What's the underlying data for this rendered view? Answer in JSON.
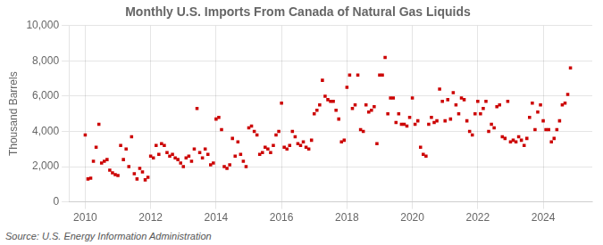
{
  "chart_data": {
    "type": "scatter",
    "title": "Monthly U.S. Imports From Canada of Natural Gas Liquids",
    "ylabel": "Thousand Barrels",
    "annotations": [
      "Source: U.S. Energy Information Administration"
    ],
    "x": [
      2010.0,
      2010.083,
      2010.167,
      2010.25,
      2010.333,
      2010.417,
      2010.5,
      2010.583,
      2010.667,
      2010.75,
      2010.833,
      2010.917,
      2011.0,
      2011.083,
      2011.167,
      2011.25,
      2011.333,
      2011.417,
      2011.5,
      2011.583,
      2011.667,
      2011.75,
      2011.833,
      2011.917,
      2012.0,
      2012.083,
      2012.167,
      2012.25,
      2012.333,
      2012.417,
      2012.5,
      2012.583,
      2012.667,
      2012.75,
      2012.833,
      2012.917,
      2013.0,
      2013.083,
      2013.167,
      2013.25,
      2013.333,
      2013.417,
      2013.5,
      2013.583,
      2013.667,
      2013.75,
      2013.833,
      2013.917,
      2014.0,
      2014.083,
      2014.167,
      2014.25,
      2014.333,
      2014.417,
      2014.5,
      2014.583,
      2014.667,
      2014.75,
      2014.833,
      2014.917,
      2015.0,
      2015.083,
      2015.167,
      2015.25,
      2015.333,
      2015.417,
      2015.5,
      2015.583,
      2015.667,
      2015.75,
      2015.833,
      2015.917,
      2016.0,
      2016.083,
      2016.167,
      2016.25,
      2016.333,
      2016.417,
      2016.5,
      2016.583,
      2016.667,
      2016.75,
      2016.833,
      2016.917,
      2017.0,
      2017.083,
      2017.167,
      2017.25,
      2017.333,
      2017.417,
      2017.5,
      2017.583,
      2017.667,
      2017.75,
      2017.833,
      2017.917,
      2018.0,
      2018.083,
      2018.167,
      2018.25,
      2018.333,
      2018.417,
      2018.5,
      2018.583,
      2018.667,
      2018.75,
      2018.833,
      2018.917,
      2019.0,
      2019.083,
      2019.167,
      2019.25,
      2019.333,
      2019.417,
      2019.5,
      2019.583,
      2019.667,
      2019.75,
      2019.833,
      2019.917,
      2020.0,
      2020.083,
      2020.167,
      2020.25,
      2020.333,
      2020.417,
      2020.5,
      2020.583,
      2020.667,
      2020.75,
      2020.833,
      2020.917,
      2021.0,
      2021.083,
      2021.167,
      2021.25,
      2021.333,
      2021.417,
      2021.5,
      2021.583,
      2021.667,
      2021.75,
      2021.833,
      2021.917,
      2022.0,
      2022.083,
      2022.167,
      2022.25,
      2022.333,
      2022.417,
      2022.5,
      2022.583,
      2022.667,
      2022.75,
      2022.833,
      2022.917,
      2023.0,
      2023.083,
      2023.167,
      2023.25,
      2023.333,
      2023.417,
      2023.5,
      2023.583,
      2023.667,
      2023.75,
      2023.833,
      2023.917,
      2024.0,
      2024.083,
      2024.167,
      2024.25,
      2024.333,
      2024.417,
      2024.5,
      2024.583,
      2024.667,
      2024.75,
      2024.833
    ],
    "values": [
      3800,
      1300,
      1350,
      2300,
      3100,
      4400,
      2200,
      2300,
      2400,
      1800,
      1650,
      1550,
      1500,
      3200,
      2400,
      3000,
      2000,
      3700,
      1600,
      1300,
      1900,
      1700,
      1250,
      1400,
      2600,
      2500,
      3200,
      2700,
      3300,
      3200,
      2800,
      2600,
      2700,
      2500,
      2400,
      2200,
      2000,
      2500,
      2600,
      2300,
      3000,
      5300,
      2800,
      2500,
      3000,
      2700,
      2100,
      2200,
      4700,
      4800,
      4100,
      2000,
      1900,
      2100,
      3600,
      2600,
      3400,
      2700,
      2300,
      2000,
      4200,
      4300,
      4000,
      3800,
      2700,
      2800,
      3100,
      3000,
      2800,
      3200,
      3800,
      4000,
      5600,
      3100,
      3000,
      3200,
      4000,
      3700,
      3300,
      3200,
      3400,
      3100,
      3000,
      3500,
      5000,
      5200,
      5500,
      6900,
      6000,
      5800,
      5700,
      5700,
      5200,
      4700,
      3400,
      3500,
      6500,
      7200,
      5300,
      5500,
      7200,
      4100,
      4000,
      5500,
      5100,
      5200,
      5400,
      3300,
      7200,
      7200,
      8200,
      5000,
      5900,
      5900,
      4500,
      5000,
      4400,
      4400,
      4300,
      4800,
      5900,
      4400,
      4600,
      3100,
      2700,
      2600,
      4400,
      4800,
      4500,
      4600,
      6400,
      5700,
      4600,
      5800,
      4700,
      6200,
      5500,
      5000,
      5900,
      5800,
      4600,
      4000,
      3800,
      5000,
      5700,
      5000,
      5300,
      5700,
      4000,
      4400,
      4200,
      5400,
      5500,
      3700,
      3600,
      5700,
      3400,
      3500,
      3400,
      3700,
      3500,
      3200,
      3600,
      4800,
      5600,
      4100,
      5100,
      5500,
      4600,
      4100,
      4100,
      3400,
      3600,
      4100,
      4600,
      5500,
      5600,
      6100,
      7600
    ],
    "color": "#cc0000",
    "marker": "square",
    "xlim": [
      2009.5,
      2025.5
    ],
    "ylim": [
      0,
      10000
    ],
    "xticks": [
      2010,
      2012,
      2014,
      2016,
      2018,
      2020,
      2022,
      2024
    ],
    "yticks": [
      0,
      {
        "value": 2000,
        "label": "2,000"
      },
      {
        "value": 4000,
        "label": "4,000"
      },
      {
        "value": 6000,
        "label": "6,000"
      },
      {
        "value": 8000,
        "label": "8,000"
      },
      {
        "value": 10000,
        "label": "10,000"
      }
    ],
    "grid": true
  }
}
